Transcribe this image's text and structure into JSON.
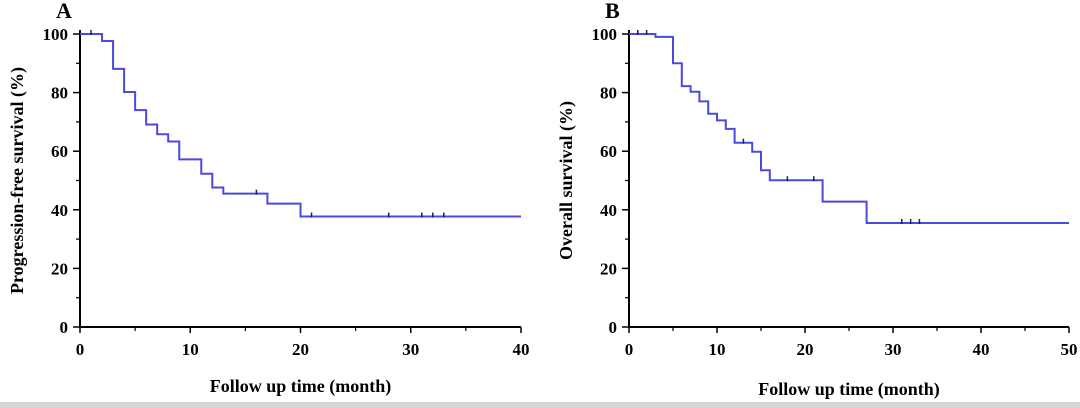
{
  "chart_data": [
    {
      "panel": "A",
      "type": "line",
      "step": true,
      "xlabel": "Follow up time (month)",
      "ylabel": "Progression-free survival (%)",
      "xlim": [
        0,
        40
      ],
      "ylim": [
        0,
        100
      ],
      "xticks": [
        0,
        10,
        20,
        30,
        40
      ],
      "yticks": [
        0,
        20,
        40,
        60,
        80,
        100
      ],
      "line_color": "#4a4ade",
      "grid": false,
      "series": [
        {
          "x": [
            0,
            2,
            3,
            4,
            5,
            6,
            7,
            8,
            9,
            10,
            11,
            12,
            13,
            17,
            20,
            40
          ],
          "y": [
            100,
            97.6,
            88.1,
            80.2,
            74,
            69.1,
            65.8,
            63.3,
            57.2,
            57.2,
            52.3,
            47.6,
            45.5,
            42.1,
            37.7,
            37.7
          ]
        }
      ],
      "censored": [
        {
          "x": 1,
          "y": 100
        },
        {
          "x": 16,
          "y": 45.5
        },
        {
          "x": 21,
          "y": 37.7
        },
        {
          "x": 28,
          "y": 37.7
        },
        {
          "x": 31,
          "y": 37.7
        },
        {
          "x": 32,
          "y": 37.7
        },
        {
          "x": 33,
          "y": 37.7
        }
      ]
    },
    {
      "panel": "B",
      "type": "line",
      "step": true,
      "xlabel": "Follow up time (month)",
      "ylabel": "Overall survival (%)",
      "xlim": [
        0,
        50
      ],
      "ylim": [
        0,
        100
      ],
      "xticks": [
        0,
        10,
        20,
        30,
        40,
        50
      ],
      "yticks": [
        0,
        20,
        40,
        60,
        80,
        100
      ],
      "line_color": "#4a4ade",
      "grid": false,
      "series": [
        {
          "x": [
            0,
            3,
            5,
            6,
            7,
            8,
            9,
            10,
            11,
            12,
            13,
            14,
            15,
            16,
            22,
            27,
            50
          ],
          "y": [
            100,
            99,
            90,
            82.2,
            80.3,
            77,
            72.8,
            70.5,
            67.6,
            62.9,
            62.9,
            59.8,
            53.5,
            50.1,
            42.8,
            35.5,
            35.5
          ]
        }
      ],
      "censored": [
        {
          "x": 1,
          "y": 100
        },
        {
          "x": 2,
          "y": 100
        },
        {
          "x": 13,
          "y": 62.9
        },
        {
          "x": 18,
          "y": 50.1
        },
        {
          "x": 21,
          "y": 50.1
        },
        {
          "x": 31,
          "y": 35.5
        },
        {
          "x": 32,
          "y": 35.5
        },
        {
          "x": 33,
          "y": 35.5
        }
      ]
    }
  ]
}
